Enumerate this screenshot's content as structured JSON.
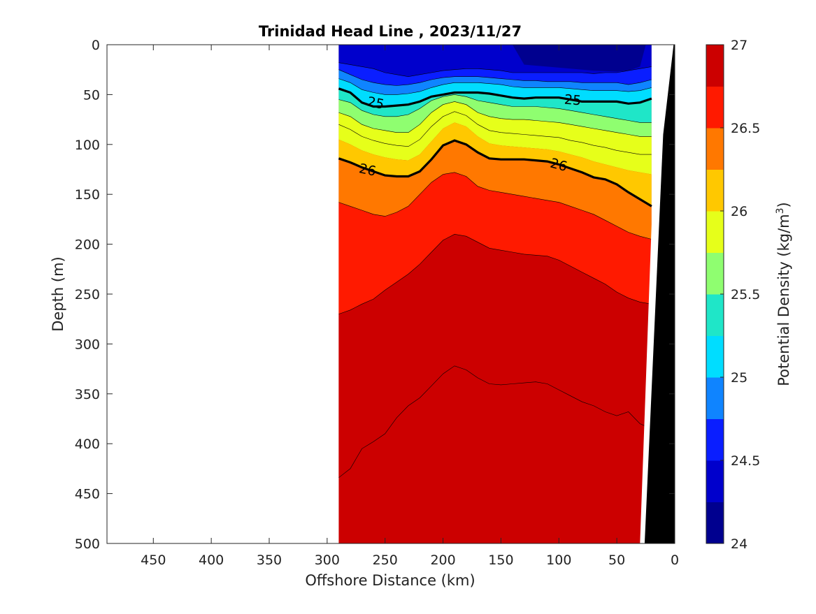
{
  "chart_data": {
    "type": "heatmap",
    "subtype": "filled-contour",
    "title": "Trinidad Head Line , 2023/11/27",
    "xlabel": "Offshore Distance (km)",
    "ylabel": "Depth (m)",
    "colorbar_label": "Potential Density (kg/m",
    "colorbar_label_sup": "3",
    "colorbar_label_end": ")",
    "xlim": [
      490,
      0
    ],
    "x_reversed": true,
    "ylim": [
      0,
      500
    ],
    "y_reversed": true,
    "x_ticks": [
      450,
      400,
      350,
      300,
      250,
      200,
      150,
      100,
      50,
      0
    ],
    "y_ticks": [
      0,
      50,
      100,
      150,
      200,
      250,
      300,
      350,
      400,
      450,
      500
    ],
    "x_tick_labels": [
      "450",
      "400",
      "350",
      "300",
      "250",
      "200",
      "150",
      "100",
      "50",
      "0"
    ],
    "y_tick_labels": [
      "0",
      "50",
      "100",
      "150",
      "200",
      "250",
      "300",
      "350",
      "400",
      "450",
      "500"
    ],
    "colorbar_ticks": [
      24,
      24.5,
      25,
      25.5,
      26,
      26.5,
      27
    ],
    "colorbar_tick_labels": [
      "24",
      "24.5",
      "25",
      "25.5",
      "26",
      "26.5",
      "27"
    ],
    "color_levels": [
      24,
      24.25,
      24.5,
      24.75,
      25,
      25.25,
      25.5,
      25.75,
      26,
      26.25,
      26.5,
      26.75,
      27
    ],
    "colormap": [
      "#00008f",
      "#0000cc",
      "#0a1eff",
      "#0f84ff",
      "#00ddff",
      "#1fe6c8",
      "#8ffe70",
      "#e6ff1a",
      "#ffc800",
      "#ff7800",
      "#ff1a00",
      "#cc0000"
    ],
    "x_range_data": [
      290,
      20
    ],
    "labeled_contours": [
      {
        "level": 25,
        "label_text": "25",
        "x": [
          290,
          280,
          270,
          260,
          250,
          240,
          230,
          220,
          210,
          200,
          190,
          180,
          170,
          160,
          150,
          140,
          130,
          120,
          110,
          100,
          90,
          80,
          70,
          60,
          50,
          40,
          30,
          20
        ],
        "y": [
          44,
          48,
          58,
          62,
          62,
          61,
          60,
          57,
          52,
          50,
          48,
          48,
          48,
          49,
          51,
          53,
          54,
          53,
          53,
          53,
          55,
          57,
          57,
          57,
          57,
          59,
          58,
          54
        ]
      },
      {
        "level": 26,
        "label_text": "26",
        "x": [
          290,
          280,
          270,
          260,
          250,
          240,
          230,
          220,
          210,
          200,
          190,
          180,
          170,
          160,
          150,
          140,
          130,
          120,
          110,
          100,
          90,
          80,
          70,
          60,
          50,
          40,
          30,
          20
        ],
        "y": [
          114,
          118,
          123,
          127,
          131,
          132,
          132,
          127,
          115,
          101,
          96,
          100,
          108,
          114,
          115,
          115,
          115,
          116,
          117,
          120,
          124,
          128,
          133,
          135,
          140,
          148,
          155,
          162
        ]
      }
    ],
    "contour_labels": [
      {
        "text": "25",
        "x": 258,
        "y": 58,
        "rotation": 12
      },
      {
        "text": "25",
        "x": 88,
        "y": 55,
        "rotation": 5
      },
      {
        "text": "26",
        "x": 265,
        "y": 125,
        "rotation": 12
      },
      {
        "text": "26",
        "x": 100,
        "y": 120,
        "rotation": 15
      }
    ],
    "mask_region": "white (no data) beyond 290 km offshore; black seafloor wedge near coast (~0-25 km)"
  }
}
